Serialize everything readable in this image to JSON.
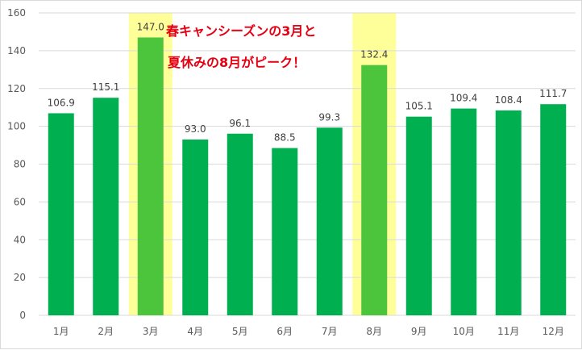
{
  "chart_data": {
    "type": "bar",
    "categories": [
      "1月",
      "2月",
      "3月",
      "4月",
      "5月",
      "6月",
      "7月",
      "8月",
      "9月",
      "10月",
      "11月",
      "12月"
    ],
    "values": [
      106.9,
      115.1,
      147.0,
      93.0,
      96.1,
      88.5,
      99.3,
      132.4,
      105.1,
      109.4,
      108.4,
      111.7
    ],
    "data_labels": [
      "106.9",
      "115.1",
      "147.0",
      "93.0",
      "96.1",
      "88.5",
      "99.3",
      "132.4",
      "105.1",
      "109.4",
      "108.4",
      "111.7"
    ],
    "highlighted_categories": [
      "3月",
      "8月"
    ],
    "ylim": [
      0,
      160
    ],
    "yticks": [
      0,
      20,
      40,
      60,
      80,
      100,
      120,
      140,
      160
    ],
    "grid": true,
    "legend": "none",
    "annotation": {
      "lines": [
        "春キャンシーズンの3月と",
        "夏休みの8月がピーク！"
      ]
    },
    "colors": {
      "bar": "#00b050",
      "bar_highlight": "#4cc43c",
      "highlight_band": "#ffff99",
      "annotation_text": "#e60012",
      "grid": "#d9d9d9"
    }
  }
}
